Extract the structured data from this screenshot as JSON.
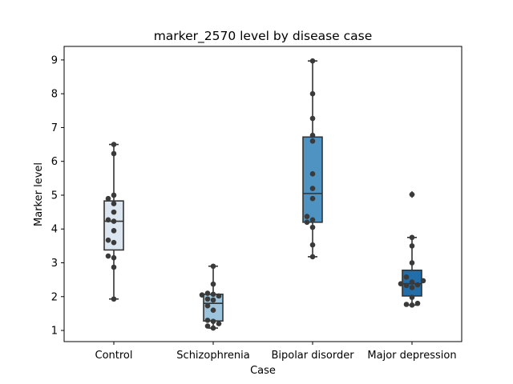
{
  "chart_data": {
    "type": "box",
    "title": "marker_2570 level by disease case",
    "xlabel": "Case",
    "ylabel": "Marker level",
    "ylim": [
      0.67,
      9.4
    ],
    "yticks": [
      1,
      2,
      3,
      4,
      5,
      6,
      7,
      8,
      9
    ],
    "grid": false,
    "categories": [
      "Control",
      "Schizophrenia",
      "Bipolar disorder",
      "Major depression"
    ],
    "colors": [
      "#dbe6f1",
      "#9cc4dd",
      "#4f93c2",
      "#236da8"
    ],
    "point_color": "#3a3a3a",
    "line_color": "#333333",
    "boxes": [
      {
        "whisker_low": 1.93,
        "q1": 3.38,
        "median": 4.23,
        "q3": 4.83,
        "whisker_high": 6.5,
        "outliers": []
      },
      {
        "whisker_low": 1.07,
        "q1": 1.28,
        "median": 1.8,
        "q3": 2.07,
        "whisker_high": 2.9,
        "outliers": []
      },
      {
        "whisker_low": 3.18,
        "q1": 4.2,
        "median": 5.05,
        "q3": 6.72,
        "whisker_high": 8.97,
        "outliers": []
      },
      {
        "whisker_low": 1.75,
        "q1": 2.02,
        "median": 2.38,
        "q3": 2.78,
        "whisker_high": 3.75,
        "outliers": [
          5.02
        ]
      }
    ],
    "points": [
      [
        1.93,
        2.87,
        3.15,
        3.2,
        3.6,
        3.67,
        3.95,
        4.23,
        4.27,
        4.5,
        4.75,
        4.9,
        5.0,
        6.23,
        6.5
      ],
      [
        1.07,
        1.13,
        1.2,
        1.27,
        1.3,
        1.6,
        1.73,
        1.9,
        1.93,
        2.02,
        2.05,
        2.07,
        2.1,
        2.37,
        2.9
      ],
      [
        3.18,
        3.53,
        4.05,
        4.2,
        4.27,
        4.37,
        4.9,
        5.2,
        5.63,
        6.6,
        6.77,
        7.27,
        8.0,
        8.97
      ],
      [
        1.75,
        1.77,
        1.8,
        1.98,
        2.27,
        2.33,
        2.35,
        2.38,
        2.43,
        2.47,
        2.58,
        3.0,
        3.5,
        3.75,
        5.02
      ]
    ]
  }
}
